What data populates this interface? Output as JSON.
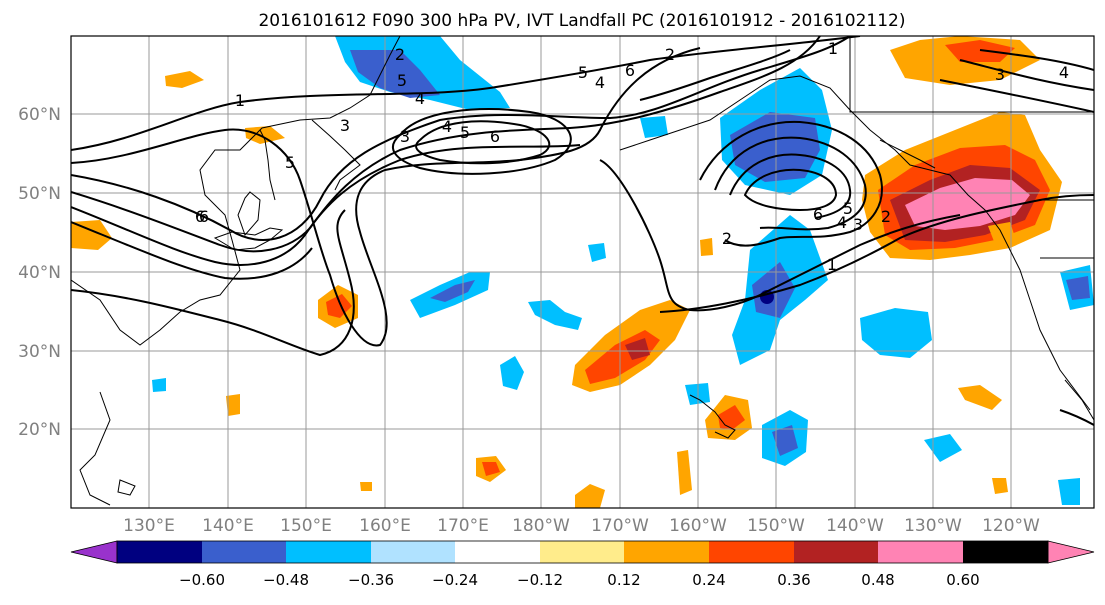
{
  "title": "2016101612 F090 300 hPa PV, IVT Landfall PC (2016101912 - 2016102112)",
  "map": {
    "lat_labels": [
      "60°N",
      "50°N",
      "40°N",
      "30°N",
      "20°N"
    ],
    "lon_labels": [
      "130°E",
      "140°E",
      "150°E",
      "160°E",
      "170°E",
      "180°W",
      "170°W",
      "160°W",
      "150°W",
      "140°W",
      "130°W",
      "120°W"
    ],
    "contour_labels": [
      "1",
      "3",
      "5",
      "6",
      "4",
      "5",
      "6",
      "6",
      "2",
      "6",
      "5",
      "4",
      "3",
      "2",
      "1",
      "2",
      "3",
      "4",
      "6",
      "5",
      "4",
      "1",
      "3",
      "4",
      "5",
      "2"
    ]
  },
  "colorbar": {
    "colors": [
      "#9932cc",
      "#000080",
      "#3a5fcd",
      "#00bfff",
      "#b0e2ff",
      "#ffffff",
      "#ffec8b",
      "#ffa500",
      "#ff4500",
      "#b22222",
      "#ff83b4"
    ],
    "tick_labels": [
      "−0.60",
      "−0.48",
      "−0.36",
      "−0.24",
      "−0.12",
      "0.12",
      "0.24",
      "0.36",
      "0.48",
      "0.60"
    ]
  }
}
